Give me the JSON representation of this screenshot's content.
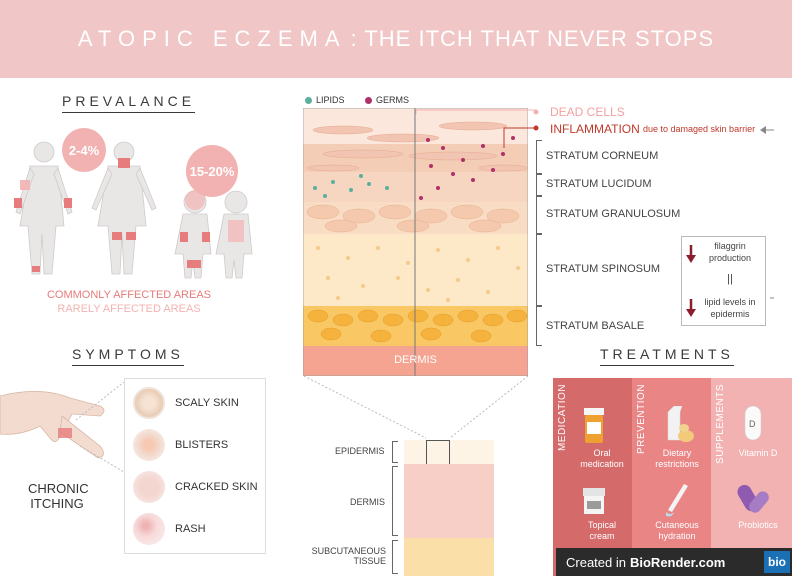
{
  "header": {
    "title_part1": "ATOPIC ECZEMA",
    "title_part2": ": THE ITCH THAT NEVER STOPS"
  },
  "prevalence": {
    "title": "PREVALANCE",
    "adult_stat": "2-4%",
    "child_stat": "15-20%",
    "legend_common": "COMMONLY AFFECTED AREAS",
    "legend_rare": "RARELY AFFECTED AREAS"
  },
  "skin_diagram": {
    "legend": {
      "lipids": "LIPIDS",
      "germs": "GERMS"
    },
    "annotations": {
      "dead_cells": "DEAD CELLS",
      "inflammation": "INFLAMMATION",
      "inflammation_note": "due to damaged skin barrier"
    },
    "layers": [
      "STRATUM CORNEUM",
      "STRATUM LUCIDUM",
      "STRATUM GRANULOSUM",
      "STRATUM SPINOSUM",
      "STRATUM BASALE"
    ],
    "dermis": "DERMIS",
    "filaggrin": {
      "line1": "filaggrin",
      "line2": "production",
      "equals": "||",
      "line3": "lipid levels in",
      "line4": "epidermis"
    }
  },
  "cross_section": {
    "epidermis": "EPIDERMIS",
    "dermis": "DERMIS",
    "subcutaneous1": "SUBCUTANEOUS",
    "subcutaneous2": "TISSUE"
  },
  "symptoms": {
    "title": "SYMPTOMS",
    "chronic1": "CHRONIC",
    "chronic2": "ITCHING",
    "items": [
      "SCALY SKIN",
      "BLISTERS",
      "CRACKED SKIN",
      "RASH"
    ]
  },
  "treatments": {
    "title": "TREATMENTS",
    "categories": [
      "MEDICATION",
      "PREVENTION",
      "SUPPLEMENTS"
    ],
    "medication": {
      "oral1": "Oral",
      "oral2": "medication",
      "topical1": "Topical",
      "topical2": "cream"
    },
    "prevention": {
      "diet1": "Dietary",
      "diet2": "restrictions",
      "hyd1": "Cutaneous",
      "hyd2": "hydration"
    },
    "supplements": {
      "vitd": "Vitamin D",
      "probiotics": "Probiotics"
    }
  },
  "credit": {
    "prefix": "Created in",
    "brand": "BioRender.com",
    "logo": "bio"
  },
  "colors": {
    "banner": "#f0c6c6",
    "pink_dark": "#e67c7c",
    "pink_light": "#f3b2b2",
    "germ": "#b0306a",
    "lipid": "#5ab0a0",
    "red": "#c0392b"
  }
}
